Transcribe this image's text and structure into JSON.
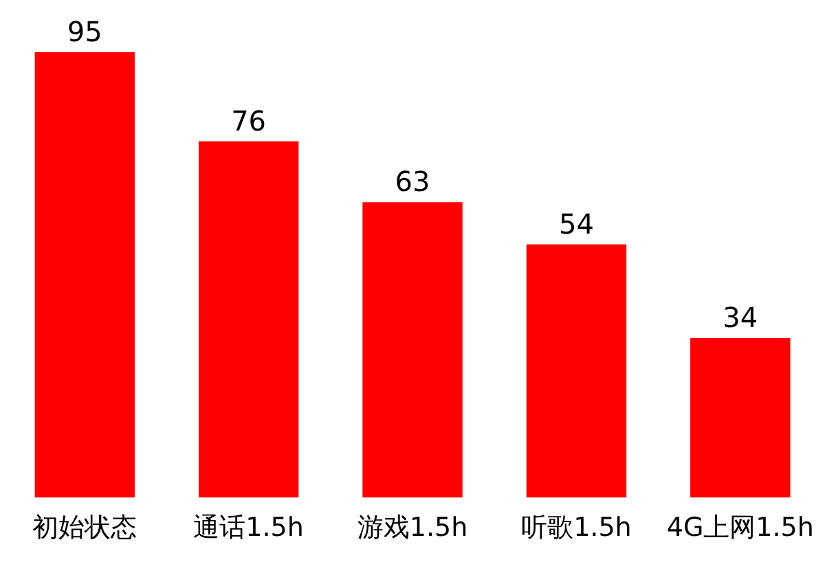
{
  "chart_data": {
    "type": "bar",
    "categories": [
      "初始状态",
      "通话1.5h",
      "游戏1.5h",
      "听歌1.5h",
      "4G上网1.5h"
    ],
    "values": [
      95,
      76,
      63,
      54,
      34
    ],
    "color": "#ff0000",
    "data_labels": true
  }
}
